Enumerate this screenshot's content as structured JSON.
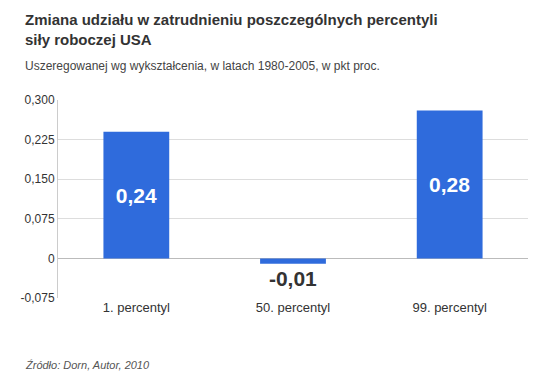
{
  "chart_data": {
    "type": "bar",
    "title": "Zmiana udziału w zatrudnieniu poszczególnych percentyli siły roboczej USA",
    "subtitle": "Uszeregowanej wg wykształcenia, w latach 1980-2005, w pkt proc.",
    "source": "Źródło: Dorn, Autor, 2010",
    "categories": [
      "1. percentyl",
      "50. percentyl",
      "99. percentyl"
    ],
    "values": [
      0.24,
      -0.01,
      0.28
    ],
    "value_labels": [
      "0,24",
      "-0,01",
      "0,28"
    ],
    "color": "#2f6bdc",
    "ylim": [
      -0.075,
      0.3
    ],
    "yticks": [
      {
        "value": -0.075,
        "label": "-0,075"
      },
      0,
      {
        "value": 0.075,
        "label": "0,075"
      },
      {
        "value": 0.15,
        "label": "0,150"
      },
      {
        "value": 0.225,
        "label": "0,225"
      },
      {
        "value": 0.3,
        "label": "0,300"
      }
    ],
    "grid": true,
    "data_labels": true
  }
}
